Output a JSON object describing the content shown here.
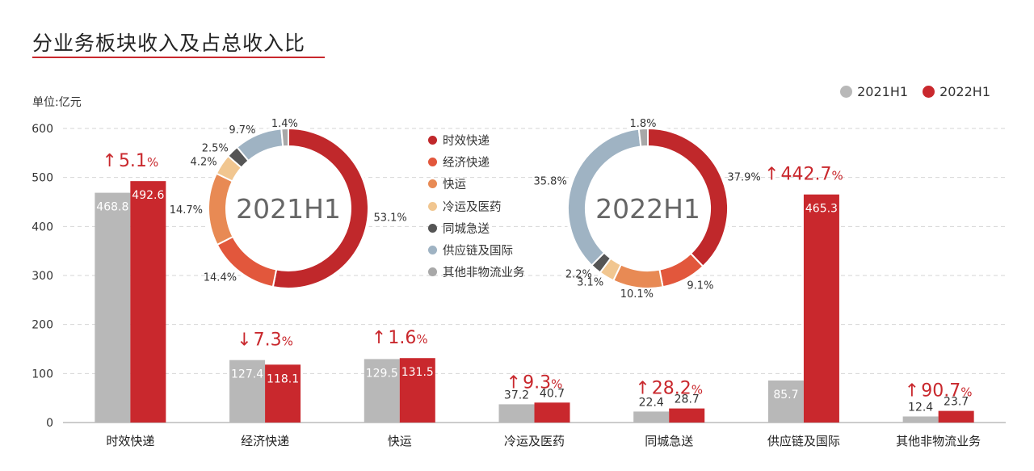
{
  "page": {
    "title": "分业务板块收入及占总收入比",
    "unit": "单位:亿元"
  },
  "colors": {
    "h1_2021": "#b8b8b8",
    "h1_2022": "#c9282d",
    "accent": "#c9282d"
  },
  "chart_data": [
    {
      "type": "bar",
      "ylim": [
        0,
        600
      ],
      "yticks": [
        0,
        100,
        200,
        300,
        400,
        500,
        600
      ],
      "grid": true,
      "legend": "top-right",
      "categories": [
        "时效快递",
        "经济快递",
        "快运",
        "冷运及医药",
        "同城急送",
        "供应链及国际",
        "其他非物流业务"
      ],
      "series": [
        {
          "name": "2021H1",
          "color": "#b8b8b8",
          "values": [
            468.8,
            127.4,
            129.5,
            37.2,
            22.4,
            85.7,
            12.4
          ],
          "labels": [
            "468.8",
            "127.4",
            "129.5",
            "37.2",
            "22.4",
            "85.7",
            "12.4"
          ]
        },
        {
          "name": "2022H1",
          "color": "#c9282d",
          "values": [
            492.6,
            118.1,
            131.5,
            40.7,
            28.7,
            465.3,
            23.7
          ],
          "labels": [
            "492.6",
            "118.1",
            "131.5",
            "40.7",
            "28.7",
            "465.3",
            "23.7"
          ]
        }
      ],
      "growth": [
        {
          "dir": "up",
          "arrow": "↑",
          "value": "5.1",
          "unit": "%"
        },
        {
          "dir": "down",
          "arrow": "↓",
          "value": "7.3",
          "unit": "%"
        },
        {
          "dir": "up",
          "arrow": "↑",
          "value": "1.6",
          "unit": "%"
        },
        {
          "dir": "up",
          "arrow": "↑",
          "value": "9.3",
          "unit": "%"
        },
        {
          "dir": "up",
          "arrow": "↑",
          "value": "28.2",
          "unit": "%"
        },
        {
          "dir": "up",
          "arrow": "↑",
          "value": "442.7",
          "unit": "%"
        },
        {
          "dir": "up",
          "arrow": "↑",
          "value": "90.7",
          "unit": "%"
        }
      ]
    },
    {
      "type": "pie",
      "center_label": "2021H1",
      "slices": [
        {
          "label": "时效快递",
          "value": 53.1,
          "text": "53.1%"
        },
        {
          "label": "经济快递",
          "value": 14.4,
          "text": "14.4%"
        },
        {
          "label": "快运",
          "value": 14.7,
          "text": "14.7%"
        },
        {
          "label": "冷运及医药",
          "value": 4.2,
          "text": "4.2%"
        },
        {
          "label": "同城急送",
          "value": 2.5,
          "text": "2.5%"
        },
        {
          "label": "供应链及国际",
          "value": 9.7,
          "text": "9.7%"
        },
        {
          "label": "其他非物流业务",
          "value": 1.4,
          "text": "1.4%"
        }
      ]
    },
    {
      "type": "pie",
      "center_label": "2022H1",
      "slices": [
        {
          "label": "时效快递",
          "value": 37.9,
          "text": "37.9%"
        },
        {
          "label": "经济快递",
          "value": 9.1,
          "text": "9.1%"
        },
        {
          "label": "快运",
          "value": 10.1,
          "text": "10.1%"
        },
        {
          "label": "冷运及医药",
          "value": 3.1,
          "text": "3.1%"
        },
        {
          "label": "同城急送",
          "value": 2.2,
          "text": "2.2%"
        },
        {
          "label": "供应链及国际",
          "value": 35.8,
          "text": "35.8%"
        },
        {
          "label": "其他非物流业务",
          "value": 1.8,
          "text": "1.8%"
        }
      ]
    }
  ],
  "pie_legend": [
    {
      "label": "时效快递",
      "color": "#c0282b"
    },
    {
      "label": "经济快递",
      "color": "#e2573c"
    },
    {
      "label": "快运",
      "color": "#e88a54"
    },
    {
      "label": "冷运及医药",
      "color": "#f1c690"
    },
    {
      "label": "同城急送",
      "color": "#555555"
    },
    {
      "label": "供应链及国际",
      "color": "#9fb3c3"
    },
    {
      "label": "其他非物流业务",
      "color": "#a8a8a8"
    }
  ]
}
